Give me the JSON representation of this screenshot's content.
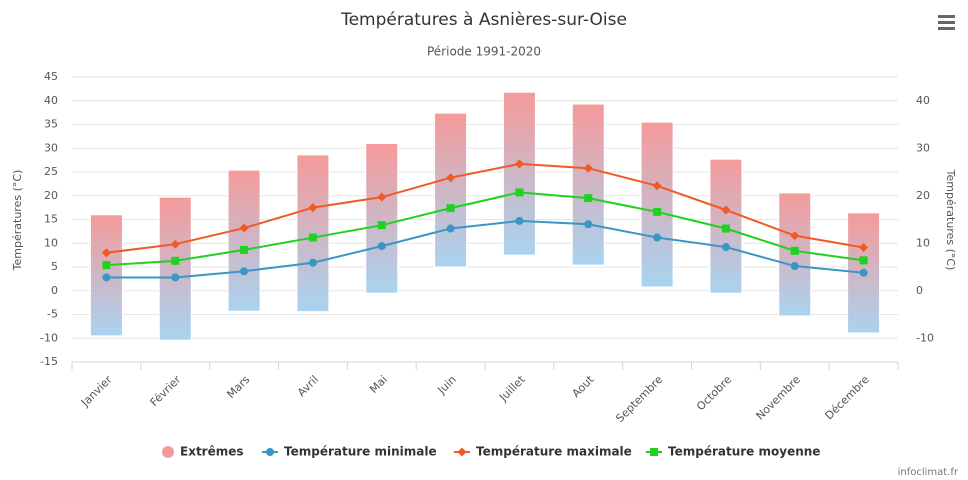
{
  "chart_data": {
    "type": "range-line",
    "title": "Températures à Asnières-sur-Oise",
    "subtitle": "Période 1991-2020",
    "ylabel": "Températures (°C)",
    "y2label": "Températures (°C)",
    "credits": "infoclimat.fr",
    "categories": [
      "Janvier",
      "Février",
      "Mars",
      "Avril",
      "Mai",
      "Juin",
      "Juillet",
      "Aout",
      "Septembre",
      "Octobre",
      "Novembre",
      "Décembre"
    ],
    "ylim": [
      -15,
      45
    ],
    "yticks": [
      -15,
      -10,
      -5,
      0,
      5,
      10,
      15,
      20,
      25,
      30,
      35,
      40,
      45
    ],
    "y2lim": [
      -15,
      45
    ],
    "y2ticks": [
      -10,
      0,
      10,
      20,
      30,
      40
    ],
    "grid": true,
    "legend": "bottom",
    "series": [
      {
        "name": "Extrêmes",
        "type": "range",
        "colors": [
          "#f59a9a",
          "#a9d3f0"
        ],
        "low": [
          -9.5,
          -10.4,
          -4.3,
          -4.4,
          -0.5,
          5,
          7.5,
          5.4,
          0.8,
          -0.5,
          -5.3,
          -8.9
        ],
        "high": [
          16,
          19.7,
          25.4,
          28.6,
          31,
          37.4,
          41.8,
          39.3,
          35.5,
          27.7,
          20.6,
          16.4
        ]
      },
      {
        "name": "Température minimale",
        "type": "line",
        "marker": "circle",
        "color": "#3a96c4",
        "values": [
          2.8,
          2.8,
          4.1,
          5.9,
          9.4,
          13.1,
          14.7,
          14.0,
          11.2,
          9.2,
          5.2,
          3.8
        ]
      },
      {
        "name": "Température maximale",
        "type": "line",
        "marker": "diamond",
        "color": "#f05a24",
        "values": [
          8.0,
          9.8,
          13.2,
          17.5,
          19.7,
          23.8,
          26.7,
          25.8,
          22.1,
          17.0,
          11.6,
          9.1
        ]
      },
      {
        "name": "Température moyenne",
        "type": "line",
        "marker": "square",
        "color": "#22d022",
        "values": [
          5.4,
          6.3,
          8.6,
          11.2,
          13.8,
          17.4,
          20.7,
          19.5,
          16.6,
          13.1,
          8.4,
          6.4
        ]
      }
    ]
  }
}
